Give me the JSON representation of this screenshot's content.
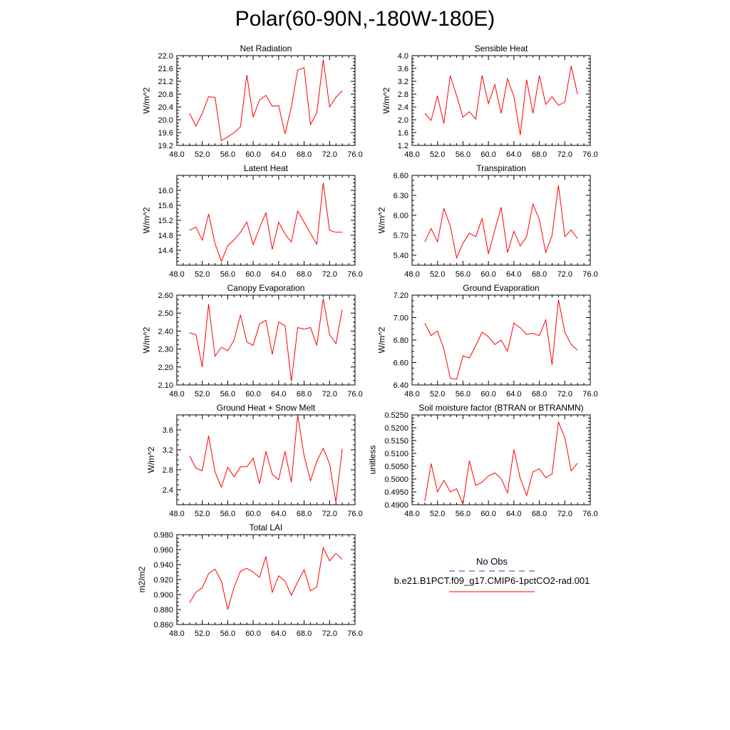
{
  "page_title": "Polar(60-90N,-180W-180E)",
  "legend": {
    "obs_label": "No Obs",
    "model_label": "b.e21.B1PCT.f09_g17.CMIP6-1pctCO2-rad.001",
    "obs_color": "#3a3aa0",
    "model_color": "#ff0000"
  },
  "chart_data": [
    {
      "type": "line",
      "title": "Net Radiation",
      "ylabel": "W/m^2",
      "xlim": [
        48,
        76
      ],
      "ylim": [
        19.2,
        22.0
      ],
      "xticks": [
        48,
        52,
        56,
        60,
        64,
        68,
        72,
        76
      ],
      "xtick_labels": [
        "48.0",
        "52.0",
        "56.0",
        "60.0",
        "64.0",
        "68.0",
        "72.0",
        "76.0"
      ],
      "yticks": [
        19.2,
        19.6,
        20.0,
        20.4,
        20.8,
        21.2,
        21.6,
        22.0
      ],
      "ytick_labels": [
        "19.2",
        "19.6",
        "20.0",
        "20.4",
        "20.8",
        "21.2",
        "21.6",
        "22.0"
      ],
      "series": [
        {
          "color": "#ff0000",
          "x": [
            50,
            51,
            52,
            53,
            54,
            55,
            56,
            57,
            58,
            59,
            60,
            61,
            62,
            63,
            64,
            65,
            66,
            67,
            68,
            69,
            70,
            71,
            72,
            73,
            74
          ],
          "values": [
            20.2,
            19.8,
            20.2,
            20.72,
            20.7,
            19.35,
            19.47,
            19.6,
            19.78,
            21.4,
            20.08,
            20.62,
            20.76,
            20.42,
            20.44,
            19.56,
            20.4,
            21.55,
            21.62,
            19.85,
            20.22,
            21.88,
            20.4,
            20.7,
            20.9
          ]
        }
      ]
    },
    {
      "type": "line",
      "title": "Sensible Heat",
      "ylabel": "W/m^2",
      "xlim": [
        48,
        76
      ],
      "ylim": [
        1.2,
        4.0
      ],
      "xticks": [
        48,
        52,
        56,
        60,
        64,
        68,
        72,
        76
      ],
      "xtick_labels": [
        "48.0",
        "52.0",
        "56.0",
        "60.0",
        "64.0",
        "68.0",
        "72.0",
        "76.0"
      ],
      "yticks": [
        1.2,
        1.6,
        2.0,
        2.4,
        2.8,
        3.2,
        3.6,
        4.0
      ],
      "ytick_labels": [
        "1.2",
        "1.6",
        "2.0",
        "2.4",
        "2.8",
        "3.2",
        "3.6",
        "4.0"
      ],
      "series": [
        {
          "color": "#ff0000",
          "x": [
            50,
            51,
            52,
            53,
            54,
            55,
            56,
            57,
            58,
            59,
            60,
            61,
            62,
            63,
            64,
            65,
            66,
            67,
            68,
            69,
            70,
            71,
            72,
            73,
            74
          ],
          "values": [
            2.2,
            1.98,
            2.75,
            1.88,
            3.38,
            2.75,
            2.08,
            2.25,
            2.02,
            3.38,
            2.5,
            3.1,
            2.2,
            3.28,
            2.72,
            1.52,
            3.25,
            2.2,
            3.38,
            2.48,
            2.72,
            2.45,
            2.55,
            3.68,
            2.8
          ]
        }
      ]
    },
    {
      "type": "line",
      "title": "Latent Heat",
      "ylabel": "W/m^2",
      "xlim": [
        48,
        76
      ],
      "ylim": [
        14.0,
        16.4
      ],
      "xticks": [
        48,
        52,
        56,
        60,
        64,
        68,
        72,
        76
      ],
      "xtick_labels": [
        "48.0",
        "52.0",
        "56.0",
        "60.0",
        "64.0",
        "68.0",
        "72.0",
        "76.0"
      ],
      "yticks": [
        14.4,
        14.8,
        15.2,
        15.6,
        16.0
      ],
      "ytick_labels": [
        "14.4",
        "14.8",
        "15.2",
        "15.6",
        "16.0"
      ],
      "series": [
        {
          "color": "#ff0000",
          "x": [
            50,
            51,
            52,
            53,
            54,
            55,
            56,
            57,
            58,
            59,
            60,
            61,
            62,
            63,
            64,
            65,
            66,
            67,
            68,
            69,
            70,
            71,
            72,
            73,
            74
          ],
          "values": [
            14.93,
            15.02,
            14.67,
            15.37,
            14.58,
            14.1,
            14.52,
            14.68,
            14.88,
            15.15,
            14.55,
            15.0,
            15.4,
            14.42,
            15.15,
            14.83,
            14.62,
            15.45,
            15.15,
            14.85,
            14.56,
            16.2,
            14.93,
            14.88,
            14.88
          ]
        }
      ]
    },
    {
      "type": "line",
      "title": "Transpiration",
      "ylabel": "W/m^2",
      "xlim": [
        48,
        76
      ],
      "ylim": [
        5.25,
        6.6
      ],
      "xticks": [
        48,
        52,
        56,
        60,
        64,
        68,
        72,
        76
      ],
      "xtick_labels": [
        "48.0",
        "52.0",
        "56.0",
        "60.0",
        "64.0",
        "68.0",
        "72.0",
        "76.0"
      ],
      "yticks": [
        5.4,
        5.7,
        6.0,
        6.3,
        6.6
      ],
      "ytick_labels": [
        "5.40",
        "5.70",
        "6.00",
        "6.30",
        "6.60"
      ],
      "series": [
        {
          "color": "#ff0000",
          "x": [
            50,
            51,
            52,
            53,
            54,
            55,
            56,
            57,
            58,
            59,
            60,
            61,
            62,
            63,
            64,
            65,
            66,
            67,
            68,
            69,
            70,
            71,
            72,
            73,
            74
          ],
          "values": [
            5.6,
            5.8,
            5.6,
            6.1,
            5.84,
            5.36,
            5.58,
            5.73,
            5.68,
            5.95,
            5.42,
            5.78,
            6.12,
            5.44,
            5.76,
            5.54,
            5.68,
            6.17,
            5.93,
            5.44,
            5.7,
            6.45,
            5.68,
            5.78,
            5.65
          ]
        }
      ]
    },
    {
      "type": "line",
      "title": "Canopy Evaporation",
      "ylabel": "W/m^2",
      "xlim": [
        48,
        76
      ],
      "ylim": [
        2.1,
        2.6
      ],
      "xticks": [
        48,
        52,
        56,
        60,
        64,
        68,
        72,
        76
      ],
      "xtick_labels": [
        "48.0",
        "52.0",
        "56.0",
        "60.0",
        "64.0",
        "68.0",
        "72.0",
        "76.0"
      ],
      "yticks": [
        2.1,
        2.2,
        2.3,
        2.4,
        2.5,
        2.6
      ],
      "ytick_labels": [
        "2.10",
        "2.20",
        "2.30",
        "2.40",
        "2.50",
        "2.60"
      ],
      "series": [
        {
          "color": "#ff0000",
          "x": [
            50,
            51,
            52,
            53,
            54,
            55,
            56,
            57,
            58,
            59,
            60,
            61,
            62,
            63,
            64,
            65,
            66,
            67,
            68,
            69,
            70,
            71,
            72,
            73,
            74
          ],
          "values": [
            2.39,
            2.38,
            2.2,
            2.55,
            2.26,
            2.31,
            2.29,
            2.35,
            2.49,
            2.34,
            2.32,
            2.44,
            2.46,
            2.27,
            2.45,
            2.43,
            2.12,
            2.42,
            2.41,
            2.42,
            2.32,
            2.58,
            2.38,
            2.33,
            2.52
          ]
        }
      ]
    },
    {
      "type": "line",
      "title": "Ground Evaporation",
      "ylabel": "W/m^2",
      "xlim": [
        48,
        76
      ],
      "ylim": [
        6.4,
        7.2
      ],
      "xticks": [
        48,
        52,
        56,
        60,
        64,
        68,
        72,
        76
      ],
      "xtick_labels": [
        "48.0",
        "52.0",
        "56.0",
        "60.0",
        "64.0",
        "68.0",
        "72.0",
        "76.0"
      ],
      "yticks": [
        6.4,
        6.6,
        6.8,
        7.0,
        7.2
      ],
      "ytick_labels": [
        "6.40",
        "6.60",
        "6.80",
        "7.00",
        "7.20"
      ],
      "series": [
        {
          "color": "#ff0000",
          "x": [
            50,
            51,
            52,
            53,
            54,
            55,
            56,
            57,
            58,
            59,
            60,
            61,
            62,
            63,
            64,
            65,
            66,
            67,
            68,
            69,
            70,
            71,
            72,
            73,
            74
          ],
          "values": [
            6.95,
            6.84,
            6.88,
            6.72,
            6.46,
            6.45,
            6.66,
            6.64,
            6.75,
            6.87,
            6.83,
            6.76,
            6.8,
            6.7,
            6.95,
            6.91,
            6.85,
            6.86,
            6.84,
            6.98,
            6.58,
            7.16,
            6.87,
            6.76,
            6.71
          ]
        }
      ]
    },
    {
      "type": "line",
      "title": "Ground Heat + Snow Melt",
      "ylabel": "W/m^2",
      "xlim": [
        48,
        76
      ],
      "ylim": [
        2.1,
        3.9
      ],
      "xticks": [
        48,
        52,
        56,
        60,
        64,
        68,
        72,
        76
      ],
      "xtick_labels": [
        "48.0",
        "52.0",
        "56.0",
        "60.0",
        "64.0",
        "68.0",
        "72.0",
        "76.0"
      ],
      "yticks": [
        2.4,
        2.8,
        3.2,
        3.6
      ],
      "ytick_labels": [
        "2.4",
        "2.8",
        "3.2",
        "3.6"
      ],
      "series": [
        {
          "color": "#ff0000",
          "x": [
            50,
            51,
            52,
            53,
            54,
            55,
            56,
            57,
            58,
            59,
            60,
            61,
            62,
            63,
            64,
            65,
            66,
            67,
            68,
            69,
            70,
            71,
            72,
            73,
            74
          ],
          "values": [
            3.08,
            2.83,
            2.78,
            3.48,
            2.76,
            2.45,
            2.85,
            2.66,
            2.86,
            2.86,
            3.03,
            2.52,
            3.17,
            2.71,
            2.6,
            3.17,
            2.55,
            3.9,
            3.08,
            2.58,
            2.97,
            3.23,
            2.92,
            2.15,
            3.22
          ]
        }
      ]
    },
    {
      "type": "line",
      "title": "Soil moisture factor (BTRAN or BTRANMN)",
      "ylabel": "unitless",
      "xlim": [
        48,
        76
      ],
      "ylim": [
        0.49,
        0.525
      ],
      "xticks": [
        48,
        52,
        56,
        60,
        64,
        68,
        72,
        76
      ],
      "xtick_labels": [
        "48.0",
        "52.0",
        "56.0",
        "60.0",
        "64.0",
        "68.0",
        "72.0",
        "76.0"
      ],
      "yticks": [
        0.49,
        0.495,
        0.5,
        0.505,
        0.51,
        0.515,
        0.52,
        0.525
      ],
      "ytick_labels": [
        "0.4900",
        "0.4950",
        "0.5000",
        "0.5050",
        "0.5100",
        "0.5150",
        "0.5200",
        "0.5250"
      ],
      "series": [
        {
          "color": "#ff0000",
          "x": [
            50,
            51,
            52,
            53,
            54,
            55,
            56,
            57,
            58,
            59,
            60,
            61,
            62,
            63,
            64,
            65,
            66,
            67,
            68,
            69,
            70,
            71,
            72,
            73,
            74
          ],
          "values": [
            0.4915,
            0.506,
            0.495,
            0.4995,
            0.495,
            0.4962,
            0.4902,
            0.5072,
            0.4975,
            0.4988,
            0.5012,
            0.5024,
            0.5002,
            0.4946,
            0.5115,
            0.5002,
            0.4936,
            0.5028,
            0.504,
            0.5005,
            0.502,
            0.5222,
            0.5162,
            0.5032,
            0.5062
          ]
        }
      ]
    },
    {
      "type": "line",
      "title": "Total LAI",
      "ylabel": "m2/m2",
      "xlim": [
        48,
        76
      ],
      "ylim": [
        0.86,
        0.98
      ],
      "xticks": [
        48,
        52,
        56,
        60,
        64,
        68,
        72,
        76
      ],
      "xtick_labels": [
        "48.0",
        "52.0",
        "56.0",
        "60.0",
        "64.0",
        "68.0",
        "72.0",
        "76.0"
      ],
      "yticks": [
        0.86,
        0.88,
        0.9,
        0.92,
        0.94,
        0.96,
        0.98
      ],
      "ytick_labels": [
        "0.860",
        "0.880",
        "0.900",
        "0.920",
        "0.940",
        "0.960",
        "0.980"
      ],
      "series": [
        {
          "color": "#ff0000",
          "x": [
            50,
            51,
            52,
            53,
            54,
            55,
            56,
            57,
            58,
            59,
            60,
            61,
            62,
            63,
            64,
            65,
            66,
            67,
            68,
            69,
            70,
            71,
            72,
            73,
            74
          ],
          "values": [
            0.889,
            0.903,
            0.909,
            0.928,
            0.934,
            0.918,
            0.88,
            0.91,
            0.931,
            0.935,
            0.93,
            0.923,
            0.951,
            0.903,
            0.925,
            0.918,
            0.899,
            0.917,
            0.933,
            0.905,
            0.91,
            0.963,
            0.945,
            0.955,
            0.947
          ]
        }
      ]
    }
  ]
}
